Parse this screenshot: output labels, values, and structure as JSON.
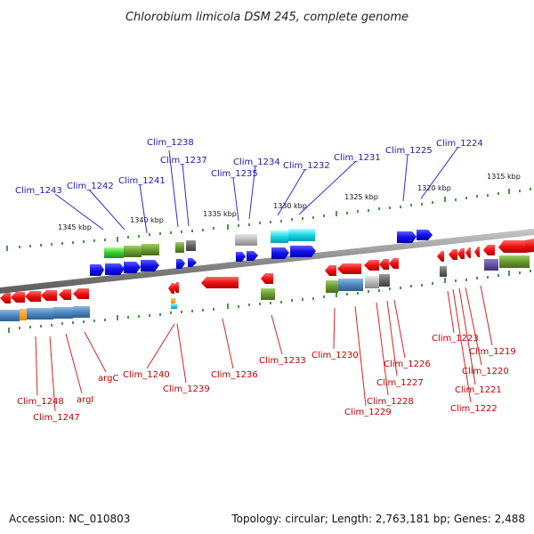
{
  "title": "Chlorobium limicola DSM 245, complete genome",
  "accession_text": "Accession: NC_010803",
  "topology_text": "Topology: circular; Length: 2,763,181 bp; Genes: 2,488",
  "scale_labels": [
    "1345 kbp",
    "1340 kbp",
    "1335 kbp",
    "1330 kbp",
    "1325 kbp",
    "1320 kbp",
    "1315 kbp"
  ],
  "top_labels": [
    "Clim_1243",
    "Clim_1242",
    "Clim_1241",
    "Clim_1238",
    "Clim_1237",
    "Clim_1235",
    "Clim_1234",
    "Clim_1232",
    "Clim_1231",
    "Clim_1225",
    "Clim_1224"
  ],
  "bottom_labels": [
    "Clim_1248",
    "Clim_1247",
    "argI",
    "argC",
    "Clim_1240",
    "Clim_1239",
    "Clim_1236",
    "Clim_1233",
    "Clim_1230",
    "Clim_1229",
    "Clim_1228",
    "Clim_1227",
    "Clim_1226",
    "Clim_1223",
    "Clim_1222",
    "Clim_1221",
    "Clim_1220",
    "Clim_1219"
  ],
  "colors": {
    "forward_strand": "#0a0ae0",
    "reverse_strand": "#e00000",
    "label_forward": "#1a1ab0",
    "label_reverse": "#c00000",
    "backbone": "#808080",
    "ticks": "#1f7a1f"
  }
}
